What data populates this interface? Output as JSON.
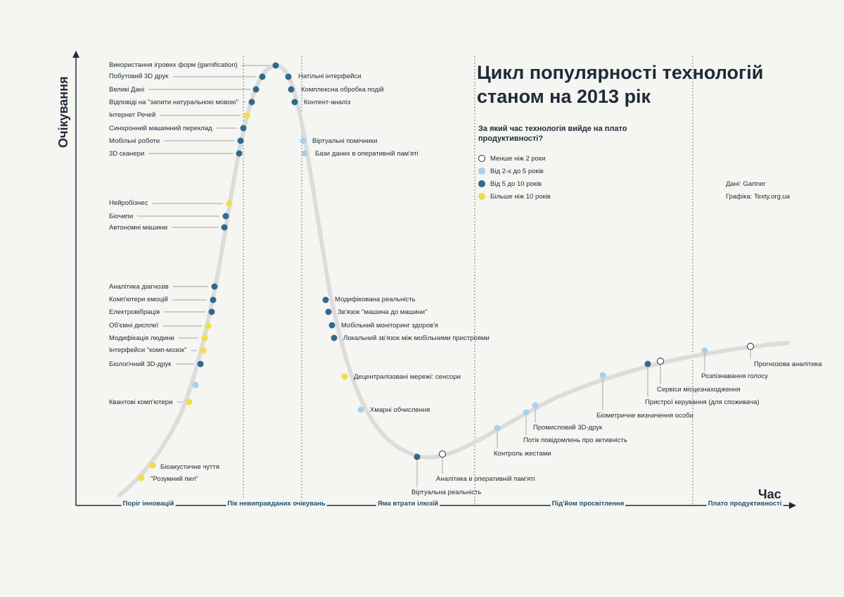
{
  "header": {
    "title": "Цикл популярності технологій станом на 2013 рік",
    "question": "За який час технологія вийде на плато продуктивності?"
  },
  "axes": {
    "y_label": "Очікування",
    "x_label": "Час"
  },
  "legend": [
    {
      "label": "Менше ніж 2 роки",
      "color": "#ffffff"
    },
    {
      "label": "Від 2-х до 5 років",
      "color": "#a9d0ea"
    },
    {
      "label": "Від 5 до 10 років",
      "color": "#2e6a8e"
    },
    {
      "label": "Більше ніж 10 років",
      "color": "#f0dd4a"
    }
  ],
  "credits": {
    "data": "Дані: Gartner",
    "graphic": "Графіка: Texty.org.ua"
  },
  "phases": [
    "Поріг інновацій",
    "Пік невиправданих очікувань",
    "Яма втрати ілюзій",
    "Під'йом просвітлення",
    "Плато продуктивності"
  ],
  "technologies": [
    {
      "label": "Використання ігрових форм (gamification)",
      "category": 3
    },
    {
      "label": "Побутовий 3D друк",
      "category": 3
    },
    {
      "label": "Великі Дані",
      "category": 3
    },
    {
      "label": "Відповіді на \"запити натуральною мовою\"",
      "category": 3
    },
    {
      "label": "Інтернет Речей",
      "category": 4
    },
    {
      "label": "Синхронний машинний переклад",
      "category": 3
    },
    {
      "label": "Мобільні роботи",
      "category": 3
    },
    {
      "label": "3D сканери",
      "category": 3
    },
    {
      "label": "Нейробізнес",
      "category": 4
    },
    {
      "label": "Біочипи",
      "category": 3
    },
    {
      "label": "Автономні машини",
      "category": 3
    },
    {
      "label": "Аналітика діагнозів",
      "category": 3
    },
    {
      "label": "Комп'ютери емоцій",
      "category": 3
    },
    {
      "label": "Електровібрація",
      "category": 3
    },
    {
      "label": "Об'ємні дисплеї",
      "category": 4
    },
    {
      "label": "Модифікація людини",
      "category": 4
    },
    {
      "label": "Інтерфейси \"комп-мозок\"",
      "category": 4
    },
    {
      "label": "Біологічний 3D-друк",
      "category": 3
    },
    {
      "label": "",
      "category": 2
    },
    {
      "label": "Квантові комп'ютери",
      "category": 4
    },
    {
      "label": "Біоакустичне чуття",
      "category": 4
    },
    {
      "label": "\"Розумний пил\"",
      "category": 4
    },
    {
      "label": "Натільні інтерфейси",
      "category": 3
    },
    {
      "label": "Комплексна обробка подій",
      "category": 3
    },
    {
      "label": "Контент-аналіз",
      "category": 3
    },
    {
      "label": "Віртуальні помічники",
      "category": 2
    },
    {
      "label": "Бази даних в оперативній пам'яті",
      "category": 2
    },
    {
      "label": "Модифікована реальність",
      "category": 3
    },
    {
      "label": "Зв'язок \"машина до машини\"",
      "category": 3
    },
    {
      "label": "Мобільний моніторинг здоров'я",
      "category": 3
    },
    {
      "label": "Локальний зв'язок між мобільними пристроями",
      "category": 3
    },
    {
      "label": "Децентралізовані мережі: сенсори",
      "category": 4
    },
    {
      "label": "Хмарні обчислення",
      "category": 2
    },
    {
      "label": "Віртуальна реальність",
      "category": 3
    },
    {
      "label": "Аналітика в оперативній пам'яті",
      "category": 1
    },
    {
      "label": "Контроль жестами",
      "category": 2
    },
    {
      "label": "Потік повідомлень про активність",
      "category": 2
    },
    {
      "label": "Промисловий 3D-друк",
      "category": 2
    },
    {
      "label": "Біометричне визначення особи",
      "category": 2
    },
    {
      "label": "Пристрої керування (для споживача)",
      "category": 3
    },
    {
      "label": "Сервіси місцезнаходження",
      "category": 1
    },
    {
      "label": "Розпізнавання голосу",
      "category": 2
    },
    {
      "label": "Прогнозова аналітика",
      "category": 1
    }
  ]
}
